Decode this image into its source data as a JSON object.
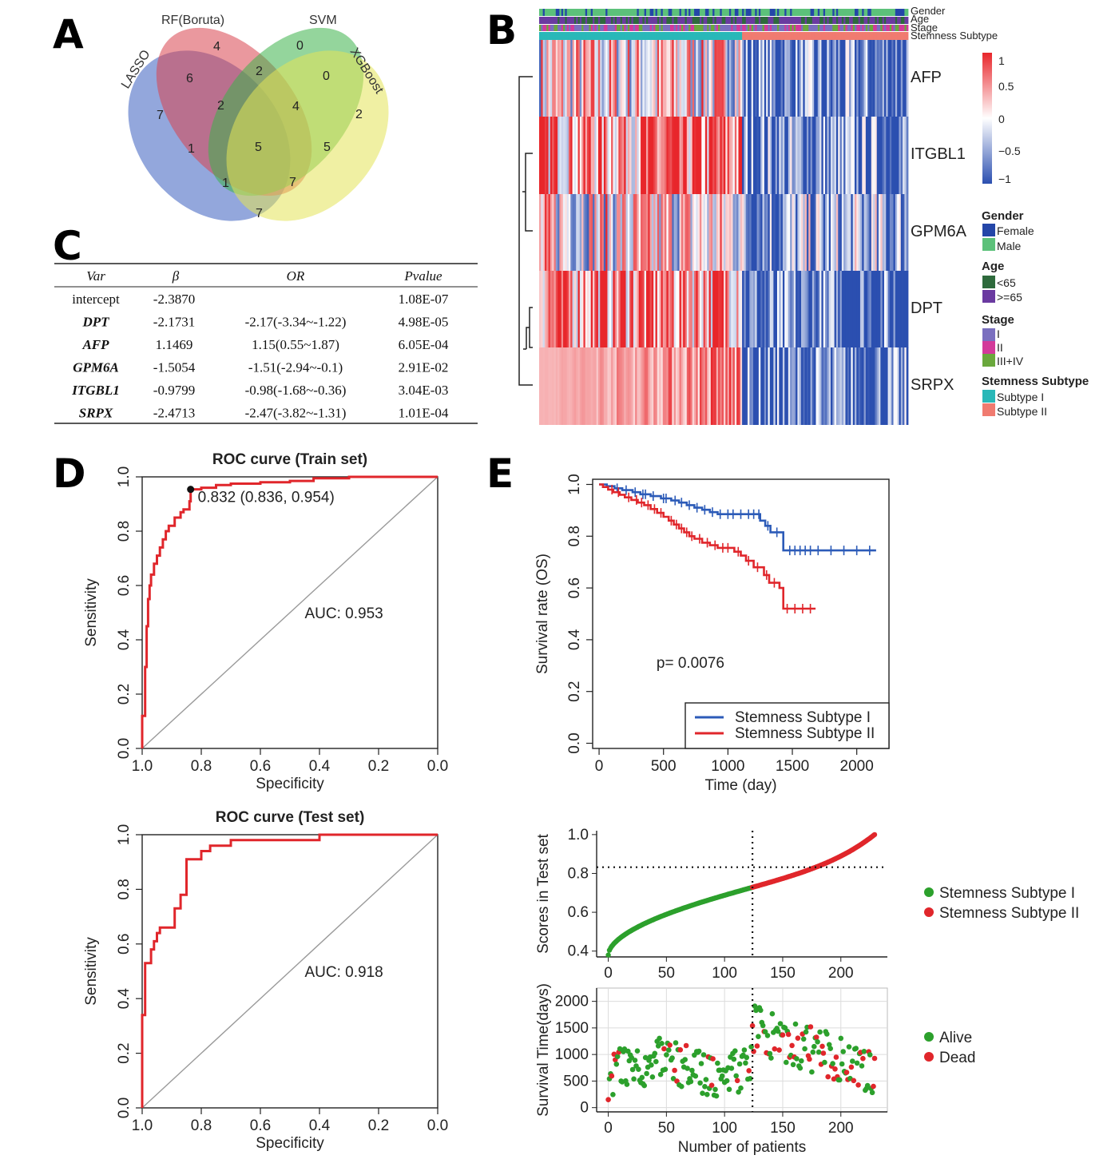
{
  "panels": {
    "a": "A",
    "b": "B",
    "c": "C",
    "d": "D",
    "e": "E"
  },
  "chart_data": [
    {
      "type": "venn",
      "panel": "A",
      "sets": [
        "LASSO",
        "RF(Boruta)",
        "SVM",
        "XGBoost"
      ],
      "region_counts": [
        {
          "value": 7,
          "label": "7"
        },
        {
          "value": 4,
          "label": "4"
        },
        {
          "value": 0,
          "label": "0"
        },
        {
          "value": 2,
          "label": "2"
        },
        {
          "value": 6,
          "label": "6"
        },
        {
          "value": 2,
          "label": "2"
        },
        {
          "value": 0,
          "label": "0"
        },
        {
          "value": 2,
          "label": "2"
        },
        {
          "value": 4,
          "label": "4"
        },
        {
          "value": 1,
          "label": "1"
        },
        {
          "value": 5,
          "label": "5"
        },
        {
          "value": 5,
          "label": "5"
        },
        {
          "value": 1,
          "label": "1"
        },
        {
          "value": 7,
          "label": "7"
        },
        {
          "value": 7,
          "label": "7"
        }
      ]
    },
    {
      "type": "heatmap",
      "panel": "B",
      "annotation_tracks": [
        "Gender",
        "Age",
        "Stage",
        "Stemness Subtype"
      ],
      "genes": [
        "AFP",
        "ITGBL1",
        "GPM6A",
        "DPT",
        "SRPX"
      ],
      "scale": {
        "ticks": [
          "1",
          "0.5",
          "0",
          "−0.5",
          "−1"
        ],
        "max_color": "#e8262b",
        "mid_color": "#ffffff",
        "min_color": "#2b4fb0"
      },
      "subtype_split_fraction": 0.55,
      "legend": [
        {
          "title": "Gender",
          "items": [
            {
              "label": "Female",
              "color": "#2446a8"
            },
            {
              "label": "Male",
              "color": "#5cc17a"
            }
          ]
        },
        {
          "title": "Age",
          "items": [
            {
              "label": "<65",
              "color": "#2e6a3c"
            },
            {
              "label": ">=65",
              "color": "#6a3aa0"
            }
          ]
        },
        {
          "title": "Stage",
          "items": [
            {
              "label": "I",
              "color": "#7a6fbf"
            },
            {
              "label": "II",
              "color": "#d33a9a"
            },
            {
              "label": "III+IV",
              "color": "#6aa83c"
            }
          ]
        },
        {
          "title": "Stemness Subtype",
          "items": [
            {
              "label": "Subtype I",
              "color": "#29b8b8"
            },
            {
              "label": "Subtype II",
              "color": "#f07b70"
            }
          ]
        }
      ]
    },
    {
      "type": "table",
      "panel": "C",
      "columns": [
        "Var",
        "β",
        "OR",
        "Pvalue"
      ],
      "rows": [
        {
          "var": "intercept",
          "beta": "-2.3870",
          "or": "",
          "p": "1.08E-07"
        },
        {
          "var": "DPT",
          "beta": "-2.1731",
          "or": "-2.17(-3.34~-1.22)",
          "p": "4.98E-05"
        },
        {
          "var": "AFP",
          "beta": "1.1469",
          "or": "1.15(0.55~1.87)",
          "p": "6.05E-04"
        },
        {
          "var": "GPM6A",
          "beta": "-1.5054",
          "or": "-1.51(-2.94~-0.1)",
          "p": "2.91E-02"
        },
        {
          "var": "ITGBL1",
          "beta": "-0.9799",
          "or": "-0.98(-1.68~-0.36)",
          "p": "3.04E-03"
        },
        {
          "var": "SRPX",
          "beta": "-2.4713",
          "or": "-2.47(-3.82~-1.31)",
          "p": "1.01E-04"
        }
      ]
    },
    {
      "type": "line",
      "panel": "D",
      "title": "ROC curve (Train set)",
      "xlabel": "Specificity",
      "ylabel": "Sensitivity",
      "xlim": [
        1.0,
        0.0
      ],
      "ylim": [
        0.0,
        1.0
      ],
      "xticks": [
        "1.0",
        "0.8",
        "0.6",
        "0.4",
        "0.2",
        "0.0"
      ],
      "yticks": [
        "0.0",
        "0.2",
        "0.4",
        "0.6",
        "0.8",
        "1.0"
      ],
      "auc_label": "AUC: 0.953",
      "threshold_label": "0.832 (0.836, 0.954)",
      "threshold_point": [
        0.836,
        0.954
      ],
      "curve": [
        [
          1.0,
          0.0
        ],
        [
          1.0,
          0.12
        ],
        [
          0.99,
          0.12
        ],
        [
          0.99,
          0.3
        ],
        [
          0.985,
          0.3
        ],
        [
          0.985,
          0.45
        ],
        [
          0.98,
          0.45
        ],
        [
          0.98,
          0.55
        ],
        [
          0.975,
          0.55
        ],
        [
          0.975,
          0.6
        ],
        [
          0.97,
          0.6
        ],
        [
          0.97,
          0.64
        ],
        [
          0.96,
          0.64
        ],
        [
          0.96,
          0.68
        ],
        [
          0.95,
          0.68
        ],
        [
          0.95,
          0.71
        ],
        [
          0.94,
          0.71
        ],
        [
          0.94,
          0.74
        ],
        [
          0.93,
          0.74
        ],
        [
          0.93,
          0.77
        ],
        [
          0.92,
          0.77
        ],
        [
          0.92,
          0.8
        ],
        [
          0.91,
          0.8
        ],
        [
          0.91,
          0.82
        ],
        [
          0.89,
          0.82
        ],
        [
          0.89,
          0.85
        ],
        [
          0.87,
          0.85
        ],
        [
          0.87,
          0.87
        ],
        [
          0.86,
          0.87
        ],
        [
          0.86,
          0.88
        ],
        [
          0.84,
          0.88
        ],
        [
          0.84,
          0.91
        ],
        [
          0.836,
          0.91
        ],
        [
          0.836,
          0.954
        ],
        [
          0.8,
          0.954
        ],
        [
          0.8,
          0.96
        ],
        [
          0.75,
          0.96
        ],
        [
          0.75,
          0.97
        ],
        [
          0.7,
          0.97
        ],
        [
          0.7,
          0.975
        ],
        [
          0.6,
          0.975
        ],
        [
          0.6,
          0.98
        ],
        [
          0.5,
          0.98
        ],
        [
          0.5,
          0.985
        ],
        [
          0.42,
          0.985
        ],
        [
          0.42,
          0.995
        ],
        [
          0.3,
          0.995
        ],
        [
          0.3,
          1.0
        ],
        [
          0.0,
          1.0
        ]
      ]
    },
    {
      "type": "line",
      "panel": "D",
      "title": "ROC curve (Test set)",
      "xlabel": "Specificity",
      "ylabel": "Sensitivity",
      "xlim": [
        1.0,
        0.0
      ],
      "ylim": [
        0.0,
        1.0
      ],
      "xticks": [
        "1.0",
        "0.8",
        "0.6",
        "0.4",
        "0.2",
        "0.0"
      ],
      "yticks": [
        "0.0",
        "0.2",
        "0.4",
        "0.6",
        "0.8",
        "1.0"
      ],
      "auc_label": "AUC: 0.918",
      "curve": [
        [
          1.0,
          0.0
        ],
        [
          1.0,
          0.34
        ],
        [
          0.99,
          0.34
        ],
        [
          0.99,
          0.53
        ],
        [
          0.97,
          0.53
        ],
        [
          0.97,
          0.58
        ],
        [
          0.96,
          0.58
        ],
        [
          0.96,
          0.61
        ],
        [
          0.95,
          0.61
        ],
        [
          0.95,
          0.64
        ],
        [
          0.94,
          0.64
        ],
        [
          0.94,
          0.66
        ],
        [
          0.89,
          0.66
        ],
        [
          0.89,
          0.73
        ],
        [
          0.87,
          0.73
        ],
        [
          0.87,
          0.78
        ],
        [
          0.85,
          0.78
        ],
        [
          0.85,
          0.91
        ],
        [
          0.8,
          0.91
        ],
        [
          0.8,
          0.94
        ],
        [
          0.77,
          0.94
        ],
        [
          0.77,
          0.96
        ],
        [
          0.7,
          0.96
        ],
        [
          0.7,
          0.98
        ],
        [
          0.5,
          0.98
        ],
        [
          0.4,
          0.98
        ],
        [
          0.4,
          1.0
        ],
        [
          0.0,
          1.0
        ]
      ]
    },
    {
      "type": "line",
      "panel": "E",
      "chart": "kaplan-meier",
      "xlabel": "Time (day)",
      "ylabel": "Survival rate (OS)",
      "xlim": [
        -50,
        2250
      ],
      "ylim": [
        -0.02,
        1.02
      ],
      "xticks": [
        "0",
        "500",
        "1000",
        "1500",
        "2000"
      ],
      "yticks": [
        "0.0",
        "0.2",
        "0.4",
        "0.6",
        "0.8",
        "1.0"
      ],
      "pvalue_label": "p= 0.0076",
      "series": [
        {
          "name": "Stemness Subtype I",
          "color": "#2c5bb8",
          "steps": [
            [
              0,
              1.0
            ],
            [
              60,
              1.0
            ],
            [
              60,
              0.993
            ],
            [
              120,
              0.993
            ],
            [
              120,
              0.985
            ],
            [
              180,
              0.985
            ],
            [
              180,
              0.978
            ],
            [
              260,
              0.978
            ],
            [
              260,
              0.97
            ],
            [
              320,
              0.97
            ],
            [
              320,
              0.962
            ],
            [
              400,
              0.962
            ],
            [
              400,
              0.955
            ],
            [
              480,
              0.955
            ],
            [
              480,
              0.946
            ],
            [
              560,
              0.946
            ],
            [
              560,
              0.938
            ],
            [
              620,
              0.938
            ],
            [
              620,
              0.93
            ],
            [
              680,
              0.93
            ],
            [
              680,
              0.92
            ],
            [
              740,
              0.92
            ],
            [
              740,
              0.91
            ],
            [
              800,
              0.91
            ],
            [
              800,
              0.902
            ],
            [
              860,
              0.902
            ],
            [
              860,
              0.893
            ],
            [
              920,
              0.893
            ],
            [
              920,
              0.885
            ],
            [
              1250,
              0.885
            ],
            [
              1250,
              0.86
            ],
            [
              1290,
              0.86
            ],
            [
              1290,
              0.84
            ],
            [
              1330,
              0.84
            ],
            [
              1330,
              0.815
            ],
            [
              1430,
              0.815
            ],
            [
              1430,
              0.745
            ],
            [
              2150,
              0.745
            ]
          ],
          "censor_times": [
            140,
            210,
            280,
            340,
            360,
            420,
            500,
            520,
            590,
            640,
            700,
            760,
            820,
            880,
            940,
            1000,
            1040,
            1100,
            1160,
            1200,
            1240,
            1310,
            1380,
            1480,
            1520,
            1560,
            1600,
            1640,
            1700,
            1800,
            1900,
            2000,
            2100
          ]
        },
        {
          "name": "Stemness Subtype II",
          "color": "#e0262b",
          "steps": [
            [
              0,
              1.0
            ],
            [
              30,
              1.0
            ],
            [
              30,
              0.99
            ],
            [
              70,
              0.99
            ],
            [
              70,
              0.98
            ],
            [
              110,
              0.98
            ],
            [
              110,
              0.97
            ],
            [
              160,
              0.97
            ],
            [
              160,
              0.96
            ],
            [
              200,
              0.96
            ],
            [
              200,
              0.95
            ],
            [
              250,
              0.95
            ],
            [
              250,
              0.94
            ],
            [
              300,
              0.94
            ],
            [
              300,
              0.93
            ],
            [
              350,
              0.93
            ],
            [
              350,
              0.92
            ],
            [
              400,
              0.92
            ],
            [
              400,
              0.905
            ],
            [
              450,
              0.905
            ],
            [
              450,
              0.89
            ],
            [
              500,
              0.89
            ],
            [
              500,
              0.875
            ],
            [
              540,
              0.875
            ],
            [
              540,
              0.86
            ],
            [
              580,
              0.86
            ],
            [
              580,
              0.845
            ],
            [
              620,
              0.845
            ],
            [
              620,
              0.83
            ],
            [
              660,
              0.83
            ],
            [
              660,
              0.815
            ],
            [
              700,
              0.815
            ],
            [
              700,
              0.8
            ],
            [
              740,
              0.8
            ],
            [
              740,
              0.79
            ],
            [
              800,
              0.79
            ],
            [
              800,
              0.775
            ],
            [
              860,
              0.775
            ],
            [
              860,
              0.765
            ],
            [
              920,
              0.765
            ],
            [
              920,
              0.755
            ],
            [
              1050,
              0.755
            ],
            [
              1050,
              0.74
            ],
            [
              1100,
              0.74
            ],
            [
              1100,
              0.725
            ],
            [
              1140,
              0.725
            ],
            [
              1140,
              0.705
            ],
            [
              1200,
              0.705
            ],
            [
              1200,
              0.68
            ],
            [
              1280,
              0.68
            ],
            [
              1280,
              0.65
            ],
            [
              1320,
              0.65
            ],
            [
              1320,
              0.62
            ],
            [
              1400,
              0.62
            ],
            [
              1400,
              0.6
            ],
            [
              1430,
              0.6
            ],
            [
              1430,
              0.52
            ],
            [
              1680,
              0.52
            ]
          ],
          "censor_times": [
            100,
            150,
            230,
            290,
            330,
            380,
            430,
            480,
            560,
            600,
            640,
            680,
            720,
            780,
            840,
            900,
            960,
            1000,
            1080,
            1160,
            1230,
            1300,
            1360,
            1460,
            1520,
            1580,
            1640
          ]
        }
      ]
    },
    {
      "type": "scatter",
      "panel": "E",
      "ylabel": "Scores in Test set",
      "xlim": [
        -10,
        240
      ],
      "ylim": [
        0.37,
        1.02
      ],
      "xticks": [
        "0",
        "50",
        "100",
        "150",
        "200"
      ],
      "yticks": [
        "0.4",
        "0.6",
        "0.8",
        "1.0"
      ],
      "cutoff_x": 124,
      "cutoff_y": 0.832,
      "n_patients": 230,
      "score_range": {
        "start": 0.38,
        "end": 1.0
      },
      "series": [
        {
          "name": "Stemness Subtype I",
          "color": "#2ca02c"
        },
        {
          "name": "Stemness Subtype II",
          "color": "#e0262b"
        }
      ]
    },
    {
      "type": "scatter",
      "panel": "E",
      "xlabel": "Number of patients",
      "ylabel": "Survival Time(days)",
      "xlim": [
        -10,
        240
      ],
      "ylim": [
        -80,
        2250
      ],
      "xticks": [
        "0",
        "50",
        "100",
        "150",
        "200"
      ],
      "yticks": [
        "0",
        "500",
        "1000",
        "1500",
        "2000"
      ],
      "cutoff_x": 124,
      "series": [
        {
          "name": "Alive",
          "color": "#2ca02c"
        },
        {
          "name": "Dead",
          "color": "#e0262b"
        }
      ]
    }
  ]
}
